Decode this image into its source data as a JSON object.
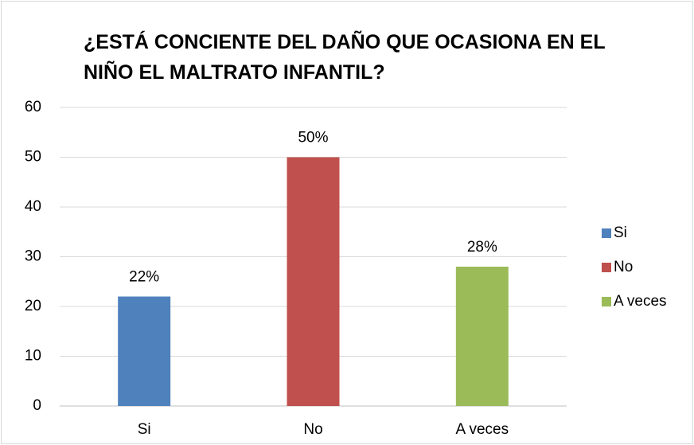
{
  "chart_data": {
    "type": "bar",
    "title": "¿ESTÁ CONCIENTE DEL DAÑO QUE OCASIONA EN EL NIÑO EL MALTRATO INFANTIL?",
    "categories": [
      "Si",
      "No",
      "A veces"
    ],
    "values": [
      22,
      50,
      28
    ],
    "value_labels": [
      "22%",
      "50%",
      "28%"
    ],
    "colors": [
      "#4f81bd",
      "#c0504d",
      "#9bbb59"
    ],
    "ylim": [
      0,
      60
    ],
    "yticks": [
      0,
      10,
      20,
      30,
      40,
      50,
      60
    ],
    "grid": true,
    "legend": "right"
  }
}
